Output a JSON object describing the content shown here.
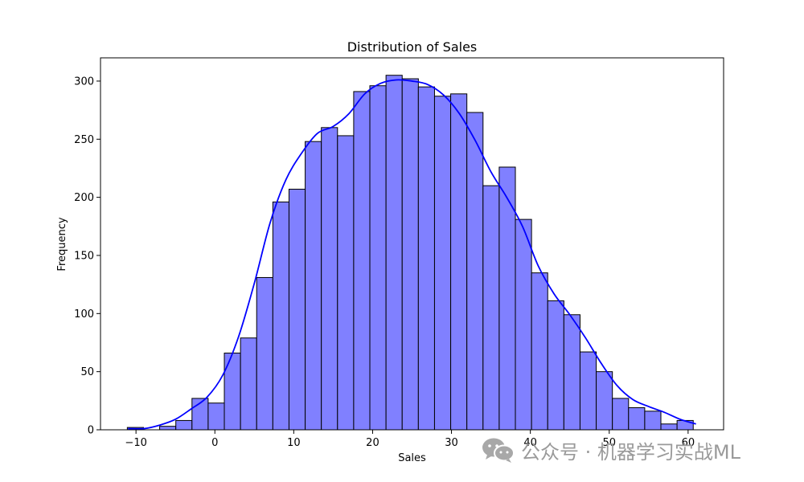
{
  "chart_data": {
    "type": "bar",
    "title": "Distribution of Sales",
    "xlabel": "Sales",
    "ylabel": "Frequency",
    "xlim": [
      -14.5,
      64.5
    ],
    "ylim": [
      0,
      320
    ],
    "xticks": [
      -10,
      0,
      10,
      20,
      30,
      40,
      50,
      60
    ],
    "yticks": [
      0,
      50,
      100,
      150,
      200,
      250,
      300
    ],
    "bar_color": "#8080ff",
    "edge_color": "#000000",
    "kde_color": "#0000ff",
    "bins": {
      "start": -11.1,
      "width": 2.05,
      "counts": [
        2,
        0,
        3,
        8,
        27,
        23,
        66,
        79,
        131,
        196,
        207,
        248,
        260,
        253,
        291,
        296,
        305,
        302,
        295,
        287,
        289,
        273,
        210,
        226,
        181,
        135,
        111,
        99,
        67,
        50,
        27,
        19,
        16,
        5,
        8
      ]
    },
    "kde": {
      "x": [
        -11,
        -9,
        -7,
        -5,
        -3,
        -1,
        1,
        3,
        5,
        7,
        9,
        11,
        13,
        15,
        17,
        19,
        21,
        23,
        25,
        27,
        29,
        31,
        33,
        35,
        37,
        39,
        41,
        43,
        45,
        47,
        49,
        51,
        53,
        55,
        57,
        59,
        61
      ],
      "y": [
        1,
        1,
        4,
        9,
        18,
        28,
        47,
        80,
        126,
        178,
        215,
        238,
        255,
        261,
        272,
        289,
        298,
        301,
        300,
        297,
        288,
        272,
        249,
        222,
        200,
        175,
        141,
        117,
        99,
        79,
        57,
        38,
        26,
        20,
        15,
        9,
        5
      ]
    },
    "grid": false,
    "legend": "none"
  },
  "watermark": {
    "text": "公众号 · 机器学习实战ML",
    "icon": "wechat-icon"
  }
}
